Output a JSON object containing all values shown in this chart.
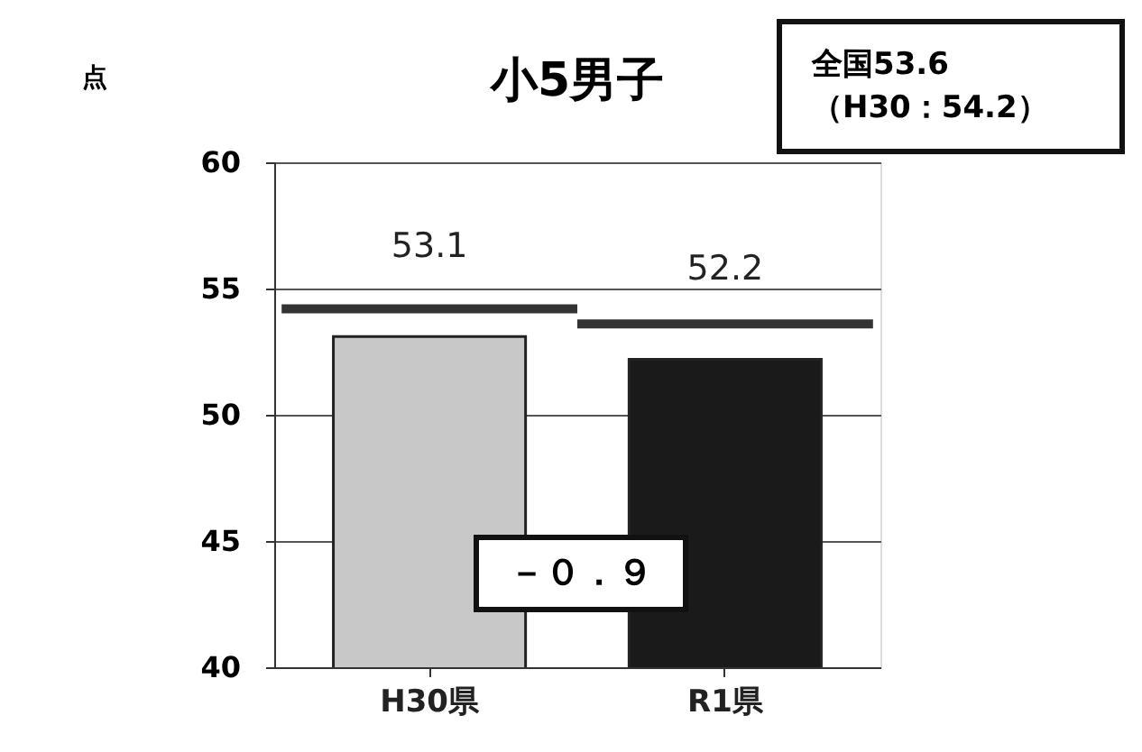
{
  "chart_data": {
    "type": "bar",
    "title": "小5男子",
    "ylabel": "点",
    "categories": [
      "H30県",
      "R1県"
    ],
    "colors": [
      "#c8c8c8",
      "#1a1a1a"
    ],
    "values": [
      53.1,
      52.2
    ],
    "data_labels": true,
    "ref_lines": [
      {
        "axis": "y",
        "value": 54.2,
        "color": "#333333"
      },
      {
        "axis": "y",
        "value": 53.6,
        "color": "#333333"
      }
    ],
    "ylim": [
      40,
      60
    ],
    "yticks": [
      40,
      45,
      50,
      55,
      60
    ],
    "grid": "y",
    "annotations": [
      "全国53.6\n（H30：54.2）",
      "－０．９"
    ]
  }
}
